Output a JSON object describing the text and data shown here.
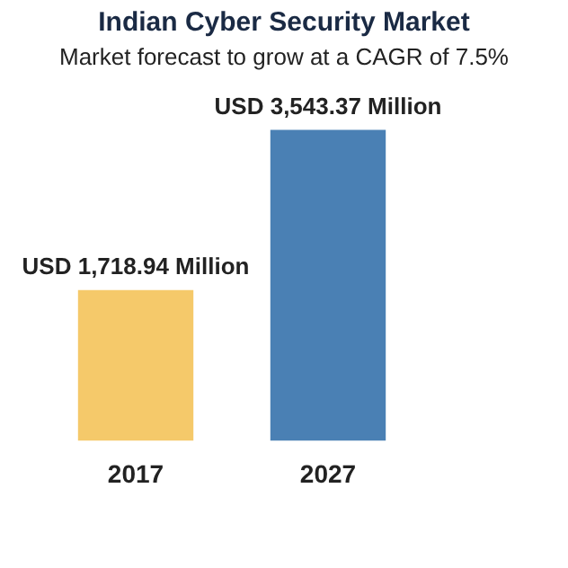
{
  "chart_data": {
    "type": "bar",
    "title": "Indian Cyber Security Market",
    "subtitle": "Market forecast to grow at a CAGR of 7.5%",
    "categories": [
      "2017",
      "2027"
    ],
    "values": [
      1718.94,
      3543.37
    ],
    "colors": [
      "#f5c96a",
      "#4a80b4"
    ],
    "value_labels": [
      "USD 1,718.94 Million",
      "USD 3,543.37 Million"
    ],
    "tick_labels": "x"
  }
}
